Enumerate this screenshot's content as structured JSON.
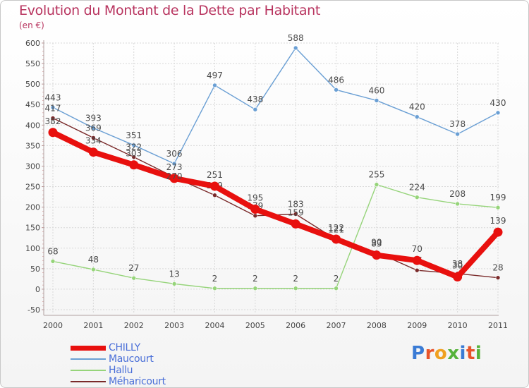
{
  "header": {
    "title": "Evolution du Montant de la Dette par Habitant",
    "subtitle": "(en €)"
  },
  "brand": {
    "text": "Proxiti",
    "letter_colors": [
      "#3a7bd5",
      "#e8542a",
      "#f0a020",
      "#56b33a",
      "#3a7bd5",
      "#e8542a",
      "#56b33a"
    ]
  },
  "chart_data": {
    "type": "line",
    "title": "Evolution du Montant de la Dette par Habitant",
    "subtitle": "(en €)",
    "xlabel": "",
    "ylabel": "",
    "x": [
      "2000",
      "2001",
      "2002",
      "2003",
      "2004",
      "2005",
      "2006",
      "2007",
      "2008",
      "2009",
      "2010",
      "2011"
    ],
    "ylim": [
      -50,
      600
    ],
    "yticks": [
      -50,
      0,
      50,
      100,
      150,
      200,
      250,
      300,
      350,
      400,
      450,
      500,
      550,
      600
    ],
    "grid": true,
    "legend_position": "bottom-left",
    "series": [
      {
        "name": "CHILLY",
        "color": "#e8100e",
        "values": [
          382,
          334,
          303,
          270,
          251,
          195,
          159,
          122,
          83,
          70,
          30,
          139
        ],
        "labels": [
          "382",
          "334",
          "303",
          "270",
          "251",
          "195",
          "159",
          "122",
          "83",
          "70",
          "30",
          "139"
        ]
      },
      {
        "name": "Maucourt",
        "color": "#6a9fd4",
        "values": [
          443,
          393,
          351,
          306,
          497,
          438,
          588,
          486,
          460,
          420,
          378,
          430
        ],
        "labels": [
          "443",
          "393",
          "351",
          "306",
          "497",
          "438",
          "588",
          "486",
          "460",
          "420",
          "378",
          "430"
        ]
      },
      {
        "name": "Hallu",
        "color": "#96d47a",
        "values": [
          68,
          48,
          27,
          13,
          2,
          2,
          2,
          2,
          255,
          224,
          208,
          199
        ],
        "labels": [
          "68",
          "48",
          "27",
          "13",
          "2",
          "2",
          "2",
          "2",
          "255",
          "224",
          "208",
          "199"
        ]
      },
      {
        "name": "Méharicourt",
        "color": "#7a2a2a",
        "values": [
          417,
          369,
          322,
          273,
          229,
          179,
          183,
          121,
          90,
          46,
          38,
          28
        ],
        "labels": [
          "417",
          "369",
          "322",
          "273",
          "229",
          "179",
          "183",
          "121",
          "90",
          "46",
          "38",
          "28"
        ]
      }
    ]
  }
}
